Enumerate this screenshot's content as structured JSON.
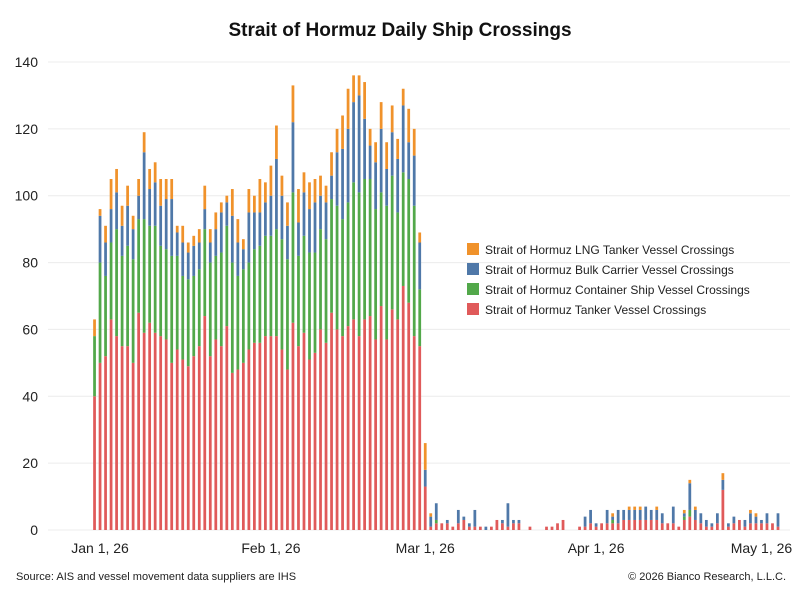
{
  "title": "Strait of Hormuz Daily Ship Crossings",
  "footer": {
    "source": "Source: AIS and vessel movement data suppliers are IHS",
    "copyright": "© 2026 Bianco Research, L.L.C."
  },
  "chart_data": {
    "type": "bar",
    "stacked": true,
    "title": "Strait of Hormuz Daily Ship Crossings",
    "xlabel": "",
    "ylabel": "",
    "ylim": [
      0,
      140
    ],
    "yticks": [
      0,
      20,
      40,
      60,
      80,
      100,
      120,
      140
    ],
    "xticks": [
      "Jan 1, 26",
      "Feb 1, 26",
      "Mar 1, 26",
      "Apr 1, 26",
      "May 1, 26"
    ],
    "x_range": [
      "2025-12-28",
      "2026-05-04"
    ],
    "grid": "horizontal",
    "legend_position": "right",
    "series": [
      {
        "name": "Strait of Hormuz LNG Tanker Vessel Crossings",
        "color": "#f0922b"
      },
      {
        "name": "Strait of Hormuz Bulk Carrier Vessel Crossings",
        "color": "#4f78a8"
      },
      {
        "name": "Strait of Hormuz Container Ship Vessel Crossings",
        "color": "#52a84a"
      },
      {
        "name": "Strait of Hormuz Tanker Vessel Crossings",
        "color": "#e05a5a"
      }
    ],
    "points": [
      {
        "date": "2025-12-31",
        "tanker": 40,
        "container": 18,
        "bulk": 0,
        "lng": 5
      },
      {
        "date": "2026-01-01",
        "tanker": 50,
        "container": 30,
        "bulk": 14,
        "lng": 2
      },
      {
        "date": "2026-01-02",
        "tanker": 52,
        "container": 24,
        "bulk": 10,
        "lng": 5
      },
      {
        "date": "2026-01-03",
        "tanker": 63,
        "container": 23,
        "bulk": 10,
        "lng": 9
      },
      {
        "date": "2026-01-04",
        "tanker": 58,
        "container": 32,
        "bulk": 11,
        "lng": 7
      },
      {
        "date": "2026-01-05",
        "tanker": 55,
        "container": 27,
        "bulk": 9,
        "lng": 6
      },
      {
        "date": "2026-01-06",
        "tanker": 55,
        "container": 30,
        "bulk": 12,
        "lng": 6
      },
      {
        "date": "2026-01-07",
        "tanker": 50,
        "container": 31,
        "bulk": 9,
        "lng": 4
      },
      {
        "date": "2026-01-08",
        "tanker": 65,
        "container": 28,
        "bulk": 7,
        "lng": 5
      },
      {
        "date": "2026-01-09",
        "tanker": 59,
        "container": 34,
        "bulk": 20,
        "lng": 6
      },
      {
        "date": "2026-01-10",
        "tanker": 62,
        "container": 29,
        "bulk": 11,
        "lng": 6
      },
      {
        "date": "2026-01-11",
        "tanker": 59,
        "container": 32,
        "bulk": 13,
        "lng": 6
      },
      {
        "date": "2026-01-12",
        "tanker": 58,
        "container": 27,
        "bulk": 12,
        "lng": 8
      },
      {
        "date": "2026-01-13",
        "tanker": 57,
        "container": 27,
        "bulk": 15,
        "lng": 6
      },
      {
        "date": "2026-01-14",
        "tanker": 50,
        "container": 32,
        "bulk": 17,
        "lng": 6
      },
      {
        "date": "2026-01-15",
        "tanker": 54,
        "container": 28,
        "bulk": 7,
        "lng": 2
      },
      {
        "date": "2026-01-16",
        "tanker": 51,
        "container": 25,
        "bulk": 10,
        "lng": 5
      },
      {
        "date": "2026-01-17",
        "tanker": 49,
        "container": 26,
        "bulk": 8,
        "lng": 3
      },
      {
        "date": "2026-01-18",
        "tanker": 52,
        "container": 24,
        "bulk": 9,
        "lng": 3
      },
      {
        "date": "2026-01-19",
        "tanker": 55,
        "container": 23,
        "bulk": 8,
        "lng": 4
      },
      {
        "date": "2026-01-20",
        "tanker": 64,
        "container": 26,
        "bulk": 6,
        "lng": 7
      },
      {
        "date": "2026-01-21",
        "tanker": 52,
        "container": 28,
        "bulk": 6,
        "lng": 4
      },
      {
        "date": "2026-01-22",
        "tanker": 57,
        "container": 25,
        "bulk": 8,
        "lng": 5
      },
      {
        "date": "2026-01-23",
        "tanker": 55,
        "container": 28,
        "bulk": 12,
        "lng": 3
      },
      {
        "date": "2026-01-24",
        "tanker": 61,
        "container": 30,
        "bulk": 7,
        "lng": 2
      },
      {
        "date": "2026-01-25",
        "tanker": 47,
        "container": 33,
        "bulk": 14,
        "lng": 8
      },
      {
        "date": "2026-01-26",
        "tanker": 48,
        "container": 28,
        "bulk": 10,
        "lng": 7
      },
      {
        "date": "2026-01-27",
        "tanker": 50,
        "container": 28,
        "bulk": 6,
        "lng": 3
      },
      {
        "date": "2026-01-28",
        "tanker": 54,
        "container": 26,
        "bulk": 15,
        "lng": 7
      },
      {
        "date": "2026-01-29",
        "tanker": 56,
        "container": 28,
        "bulk": 11,
        "lng": 5
      },
      {
        "date": "2026-01-30",
        "tanker": 56,
        "container": 29,
        "bulk": 10,
        "lng": 10
      },
      {
        "date": "2026-01-31",
        "tanker": 58,
        "container": 30,
        "bulk": 10,
        "lng": 6
      },
      {
        "date": "2026-02-01",
        "tanker": 58,
        "container": 30,
        "bulk": 12,
        "lng": 9
      },
      {
        "date": "2026-02-02",
        "tanker": 58,
        "container": 32,
        "bulk": 21,
        "lng": 10
      },
      {
        "date": "2026-02-03",
        "tanker": 54,
        "container": 33,
        "bulk": 13,
        "lng": 6
      },
      {
        "date": "2026-02-04",
        "tanker": 48,
        "container": 33,
        "bulk": 10,
        "lng": 7
      },
      {
        "date": "2026-02-05",
        "tanker": 62,
        "container": 39,
        "bulk": 21,
        "lng": 11
      },
      {
        "date": "2026-02-06",
        "tanker": 55,
        "container": 27,
        "bulk": 10,
        "lng": 10
      },
      {
        "date": "2026-02-07",
        "tanker": 59,
        "container": 29,
        "bulk": 13,
        "lng": 6
      },
      {
        "date": "2026-02-08",
        "tanker": 51,
        "container": 32,
        "bulk": 13,
        "lng": 8
      },
      {
        "date": "2026-02-09",
        "tanker": 53,
        "container": 30,
        "bulk": 15,
        "lng": 7
      },
      {
        "date": "2026-02-10",
        "tanker": 60,
        "container": 30,
        "bulk": 10,
        "lng": 6
      },
      {
        "date": "2026-02-11",
        "tanker": 56,
        "container": 31,
        "bulk": 11,
        "lng": 5
      },
      {
        "date": "2026-02-12",
        "tanker": 65,
        "container": 34,
        "bulk": 7,
        "lng": 7
      },
      {
        "date": "2026-02-13",
        "tanker": 60,
        "container": 37,
        "bulk": 16,
        "lng": 7
      },
      {
        "date": "2026-02-14",
        "tanker": 58,
        "container": 35,
        "bulk": 21,
        "lng": 10
      },
      {
        "date": "2026-02-15",
        "tanker": 61,
        "container": 37,
        "bulk": 22,
        "lng": 12
      },
      {
        "date": "2026-02-16",
        "tanker": 63,
        "container": 41,
        "bulk": 24,
        "lng": 8
      },
      {
        "date": "2026-02-17",
        "tanker": 58,
        "container": 43,
        "bulk": 29,
        "lng": 6
      },
      {
        "date": "2026-02-18",
        "tanker": 63,
        "container": 42,
        "bulk": 18,
        "lng": 11
      },
      {
        "date": "2026-02-19",
        "tanker": 64,
        "container": 41,
        "bulk": 10,
        "lng": 5
      },
      {
        "date": "2026-02-20",
        "tanker": 57,
        "container": 39,
        "bulk": 14,
        "lng": 6
      },
      {
        "date": "2026-02-21",
        "tanker": 67,
        "container": 34,
        "bulk": 19,
        "lng": 8
      },
      {
        "date": "2026-02-22",
        "tanker": 57,
        "container": 40,
        "bulk": 11,
        "lng": 8
      },
      {
        "date": "2026-02-23",
        "tanker": 66,
        "container": 40,
        "bulk": 13,
        "lng": 8
      },
      {
        "date": "2026-02-24",
        "tanker": 63,
        "container": 32,
        "bulk": 16,
        "lng": 6
      },
      {
        "date": "2026-02-25",
        "tanker": 73,
        "container": 34,
        "bulk": 20,
        "lng": 5
      },
      {
        "date": "2026-02-26",
        "tanker": 68,
        "container": 37,
        "bulk": 11,
        "lng": 10
      },
      {
        "date": "2026-02-27",
        "tanker": 58,
        "container": 39,
        "bulk": 15,
        "lng": 8
      },
      {
        "date": "2026-02-28",
        "tanker": 55,
        "container": 17,
        "bulk": 14,
        "lng": 3
      },
      {
        "date": "2026-03-01",
        "tanker": 13,
        "container": 0,
        "bulk": 5,
        "lng": 8
      },
      {
        "date": "2026-03-02",
        "tanker": 1,
        "container": 0,
        "bulk": 3,
        "lng": 1
      },
      {
        "date": "2026-03-03",
        "tanker": 2,
        "container": 1,
        "bulk": 5,
        "lng": 0
      },
      {
        "date": "2026-03-04",
        "tanker": 2,
        "container": 0,
        "bulk": 0,
        "lng": 0
      },
      {
        "date": "2026-03-05",
        "tanker": 2,
        "container": 0,
        "bulk": 1,
        "lng": 0
      },
      {
        "date": "2026-03-06",
        "tanker": 1,
        "container": 0,
        "bulk": 0,
        "lng": 0
      },
      {
        "date": "2026-03-07",
        "tanker": 2,
        "container": 0,
        "bulk": 4,
        "lng": 0
      },
      {
        "date": "2026-03-08",
        "tanker": 3,
        "container": 0,
        "bulk": 1,
        "lng": 0
      },
      {
        "date": "2026-03-09",
        "tanker": 1,
        "container": 0,
        "bulk": 1,
        "lng": 0
      },
      {
        "date": "2026-03-10",
        "tanker": 1,
        "container": 0,
        "bulk": 5,
        "lng": 0
      },
      {
        "date": "2026-03-11",
        "tanker": 1,
        "container": 0,
        "bulk": 0,
        "lng": 0
      },
      {
        "date": "2026-03-12",
        "tanker": 0,
        "container": 0,
        "bulk": 1,
        "lng": 0
      },
      {
        "date": "2026-03-13",
        "tanker": 1,
        "container": 0,
        "bulk": 0,
        "lng": 0
      },
      {
        "date": "2026-03-14",
        "tanker": 3,
        "container": 0,
        "bulk": 0,
        "lng": 0
      },
      {
        "date": "2026-03-15",
        "tanker": 2,
        "container": 0,
        "bulk": 1,
        "lng": 0
      },
      {
        "date": "2026-03-16",
        "tanker": 1,
        "container": 0,
        "bulk": 7,
        "lng": 0
      },
      {
        "date": "2026-03-17",
        "tanker": 2,
        "container": 0,
        "bulk": 1,
        "lng": 0
      },
      {
        "date": "2026-03-18",
        "tanker": 2,
        "container": 0,
        "bulk": 1,
        "lng": 0
      },
      {
        "date": "2026-03-19",
        "tanker": 0,
        "container": 0,
        "bulk": 0,
        "lng": 0
      },
      {
        "date": "2026-03-20",
        "tanker": 1,
        "container": 0,
        "bulk": 0,
        "lng": 0
      },
      {
        "date": "2026-03-21",
        "tanker": 0,
        "container": 0,
        "bulk": 0,
        "lng": 0
      },
      {
        "date": "2026-03-22",
        "tanker": 0,
        "container": 0,
        "bulk": 0,
        "lng": 0
      },
      {
        "date": "2026-03-23",
        "tanker": 1,
        "container": 0,
        "bulk": 0,
        "lng": 0
      },
      {
        "date": "2026-03-24",
        "tanker": 1,
        "container": 0,
        "bulk": 0,
        "lng": 0
      },
      {
        "date": "2026-03-25",
        "tanker": 2,
        "container": 0,
        "bulk": 0,
        "lng": 0
      },
      {
        "date": "2026-03-26",
        "tanker": 3,
        "container": 0,
        "bulk": 0,
        "lng": 0
      },
      {
        "date": "2026-03-27",
        "tanker": 0,
        "container": 0,
        "bulk": 0,
        "lng": 0
      },
      {
        "date": "2026-03-28",
        "tanker": 0,
        "container": 0,
        "bulk": 0,
        "lng": 0
      },
      {
        "date": "2026-03-29",
        "tanker": 1,
        "container": 0,
        "bulk": 0,
        "lng": 0
      },
      {
        "date": "2026-03-30",
        "tanker": 1,
        "container": 0,
        "bulk": 3,
        "lng": 0
      },
      {
        "date": "2026-03-31",
        "tanker": 2,
        "container": 0,
        "bulk": 4,
        "lng": 0
      },
      {
        "date": "2026-04-01",
        "tanker": 1,
        "container": 0,
        "bulk": 1,
        "lng": 0
      },
      {
        "date": "2026-04-02",
        "tanker": 2,
        "container": 0,
        "bulk": 0,
        "lng": 0
      },
      {
        "date": "2026-04-03",
        "tanker": 2,
        "container": 0,
        "bulk": 4,
        "lng": 0
      },
      {
        "date": "2026-04-04",
        "tanker": 2,
        "container": 1,
        "bulk": 1,
        "lng": 1
      },
      {
        "date": "2026-04-05",
        "tanker": 2,
        "container": 0,
        "bulk": 4,
        "lng": 0
      },
      {
        "date": "2026-04-06",
        "tanker": 3,
        "container": 0,
        "bulk": 3,
        "lng": 0
      },
      {
        "date": "2026-04-07",
        "tanker": 3,
        "container": 0,
        "bulk": 3,
        "lng": 1
      },
      {
        "date": "2026-04-08",
        "tanker": 3,
        "container": 0,
        "bulk": 3,
        "lng": 1
      },
      {
        "date": "2026-04-09",
        "tanker": 3,
        "container": 0,
        "bulk": 3,
        "lng": 1
      },
      {
        "date": "2026-04-10",
        "tanker": 3,
        "container": 0,
        "bulk": 4,
        "lng": 0
      },
      {
        "date": "2026-04-11",
        "tanker": 3,
        "container": 0,
        "bulk": 3,
        "lng": 0
      },
      {
        "date": "2026-04-12",
        "tanker": 3,
        "container": 0,
        "bulk": 3,
        "lng": 1
      },
      {
        "date": "2026-04-13",
        "tanker": 2,
        "container": 0,
        "bulk": 3,
        "lng": 0
      },
      {
        "date": "2026-04-14",
        "tanker": 2,
        "container": 0,
        "bulk": 0,
        "lng": 0
      },
      {
        "date": "2026-04-15",
        "tanker": 2,
        "container": 0,
        "bulk": 5,
        "lng": 0
      },
      {
        "date": "2026-04-16",
        "tanker": 1,
        "container": 0,
        "bulk": 0,
        "lng": 0
      },
      {
        "date": "2026-04-17",
        "tanker": 3,
        "container": 1,
        "bulk": 1,
        "lng": 1
      },
      {
        "date": "2026-04-18",
        "tanker": 4,
        "container": 2,
        "bulk": 8,
        "lng": 1
      },
      {
        "date": "2026-04-19",
        "tanker": 3,
        "container": 0,
        "bulk": 3,
        "lng": 1
      },
      {
        "date": "2026-04-20",
        "tanker": 2,
        "container": 0,
        "bulk": 3,
        "lng": 0
      },
      {
        "date": "2026-04-21",
        "tanker": 1,
        "container": 0,
        "bulk": 2,
        "lng": 0
      },
      {
        "date": "2026-04-22",
        "tanker": 1,
        "container": 0,
        "bulk": 1,
        "lng": 0
      },
      {
        "date": "2026-04-23",
        "tanker": 2,
        "container": 0,
        "bulk": 3,
        "lng": 0
      },
      {
        "date": "2026-04-24",
        "tanker": 12,
        "container": 0,
        "bulk": 3,
        "lng": 2
      },
      {
        "date": "2026-04-25",
        "tanker": 1,
        "container": 0,
        "bulk": 1,
        "lng": 0
      },
      {
        "date": "2026-04-26",
        "tanker": 2,
        "container": 0,
        "bulk": 2,
        "lng": 0
      },
      {
        "date": "2026-04-27",
        "tanker": 3,
        "container": 0,
        "bulk": 0,
        "lng": 0
      },
      {
        "date": "2026-04-28",
        "tanker": 1,
        "container": 0,
        "bulk": 2,
        "lng": 0
      },
      {
        "date": "2026-04-29",
        "tanker": 2,
        "container": 0,
        "bulk": 3,
        "lng": 1
      },
      {
        "date": "2026-04-30",
        "tanker": 2,
        "container": 0,
        "bulk": 2,
        "lng": 1
      },
      {
        "date": "2026-05-01",
        "tanker": 2,
        "container": 0,
        "bulk": 1,
        "lng": 0
      },
      {
        "date": "2026-05-02",
        "tanker": 2,
        "container": 0,
        "bulk": 3,
        "lng": 0
      },
      {
        "date": "2026-05-03",
        "tanker": 2,
        "container": 0,
        "bulk": 0,
        "lng": 0
      },
      {
        "date": "2026-05-04",
        "tanker": 1,
        "container": 0,
        "bulk": 4,
        "lng": 0
      }
    ]
  }
}
